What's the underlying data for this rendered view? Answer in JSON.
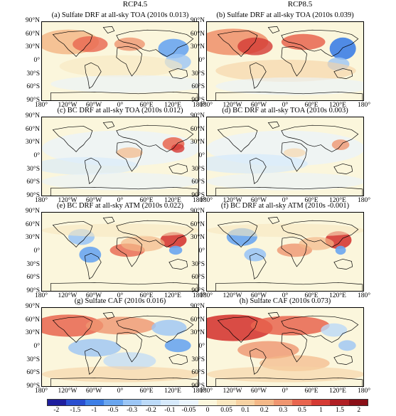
{
  "columns": {
    "left": "RCP4.5",
    "right": "RCP8.5"
  },
  "panels": [
    {
      "title": "(a) Sulfate DRF at all-sky TOA (2010s 0.013)"
    },
    {
      "title": "(b) Sulfate DRF at all-sky TOA (2010s 0.039)"
    },
    {
      "title": "(c) BC DRF at all-sky TOA (2010s 0.012)"
    },
    {
      "title": "(d) BC DRF at all-sky TOA (2010s 0.003)"
    },
    {
      "title": "(e) BC DRF at all-sky ATM (2010s 0.022)"
    },
    {
      "title": "(f) BC DRF at all-sky ATM (2010s -0.001)"
    },
    {
      "title": "(g) Sulfate CAF (2010s 0.016)"
    },
    {
      "title": "(h) Sulfate CAF (2010s 0.073)"
    }
  ],
  "lat_labels": [
    "90°N",
    "60°N",
    "30°N",
    "0°",
    "30°S",
    "60°S",
    "90°S"
  ],
  "lon_labels": [
    "180°",
    "120°W",
    "60°W",
    "0°",
    "60°E",
    "120°E",
    "180°"
  ],
  "colorbar": {
    "labels": [
      "-2",
      "-1.5",
      "-1",
      "-0.5",
      "-0.3",
      "-0.2",
      "-0.1",
      "-0.05",
      "0",
      "0.05",
      "0.1",
      "0.2",
      "0.3",
      "0.5",
      "1",
      "1.5",
      "2"
    ],
    "colors": [
      "#1f1f9e",
      "#2a4fd0",
      "#3d7fe6",
      "#6aa6ef",
      "#9cc6f5",
      "#bcdaf8",
      "#d6e9fb",
      "#eaf4fc",
      "#fbf6dc",
      "#f9e7bf",
      "#f6d2a3",
      "#f3b888",
      "#ef9670",
      "#e8654f",
      "#d53a34",
      "#b01f24",
      "#8a0f17"
    ]
  }
}
